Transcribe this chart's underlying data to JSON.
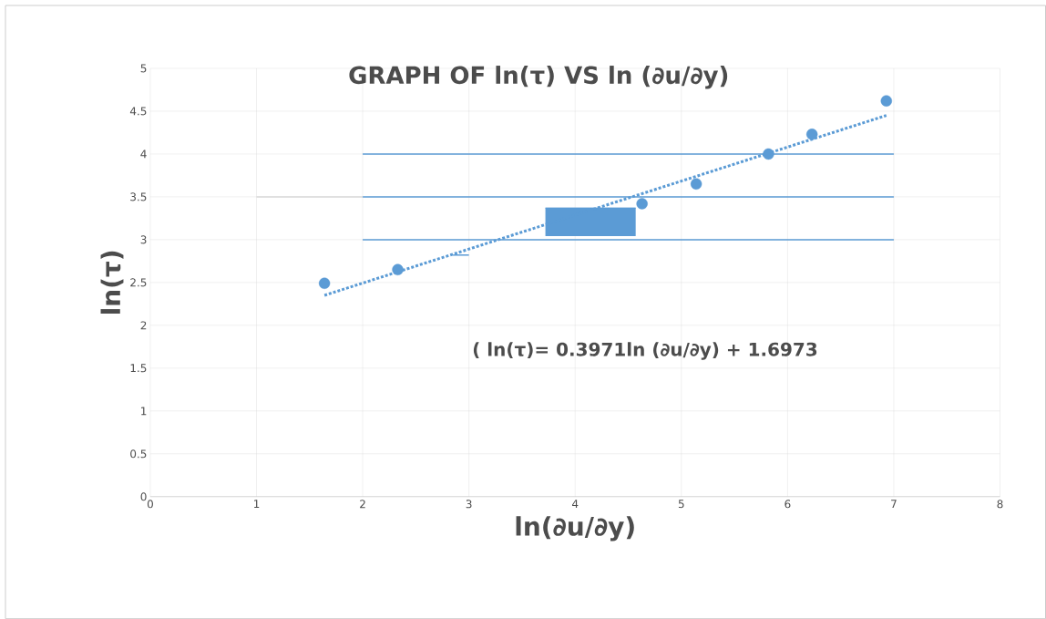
{
  "chart_data": {
    "type": "scatter",
    "title": "GRAPH OF ln(τ) VS ln (∂u/∂y)",
    "xlabel": "ln(∂u/∂y)",
    "ylabel": "ln(τ)",
    "annotations": [
      "( ln(τ)= 0.3971ln (∂u/∂y) + 1.6973"
    ],
    "xlim": [
      0,
      8
    ],
    "ylim": [
      0,
      5
    ],
    "xticks": [
      0,
      1,
      2,
      3,
      4,
      5,
      6,
      7,
      8
    ],
    "yticks": [
      0,
      {
        "value": 0.5,
        "label": "0.5"
      },
      1,
      {
        "value": 1.5,
        "label": "1.5"
      },
      2,
      {
        "value": 2.5,
        "label": "2.5"
      },
      3,
      {
        "value": 3.5,
        "label": "3.5"
      },
      4,
      {
        "value": 4.5,
        "label": "4.5"
      },
      5
    ],
    "grid": true,
    "series": [
      {
        "type": "line",
        "color": "#5b9bd5",
        "line_style": "solid",
        "marker": "none",
        "x": [
          2,
          7
        ],
        "values": [
          3,
          3
        ]
      },
      {
        "type": "line",
        "color": "#5b9bd5",
        "line_style": "solid",
        "marker": "none",
        "x": [
          2,
          7
        ],
        "values": [
          3.5,
          3.5
        ]
      },
      {
        "type": "line",
        "color": "#5b9bd5",
        "line_style": "solid",
        "marker": "none",
        "x": [
          2,
          7
        ],
        "values": [
          4,
          4
        ]
      },
      {
        "type": "line",
        "color": "#d9d9d9",
        "line_style": "solid",
        "marker": "none",
        "x": [
          1,
          2
        ],
        "values": [
          3.5,
          3.5
        ]
      },
      {
        "type": "line",
        "color": "#5b9bd5",
        "line_style": "solid",
        "marker": "none",
        "x": [
          2.85,
          3.0
        ],
        "values": [
          2.82,
          2.82
        ]
      },
      {
        "type": "line",
        "color": "#5b9bd5",
        "line_style": "solid",
        "marker": "none",
        "x": [
          3.72,
          4.57
        ],
        "values": [
          3.37,
          3.37
        ],
        "lower": [
          3.04,
          3.04
        ],
        "upper": [
          3.37,
          3.37
        ]
      },
      {
        "type": "line",
        "color": "#5b9bd5",
        "line_style": "dotted",
        "marker": "none",
        "x": [
          1.64,
          6.93
        ],
        "values": [
          2.35,
          4.45
        ]
      },
      {
        "color": "#5b9bd5",
        "marker": "circle",
        "x": [
          1.64,
          2.33,
          4.63,
          5.14,
          5.82,
          6.23,
          6.93
        ],
        "values": [
          2.49,
          2.65,
          3.42,
          3.65,
          4.0,
          4.23,
          4.62
        ]
      }
    ]
  }
}
